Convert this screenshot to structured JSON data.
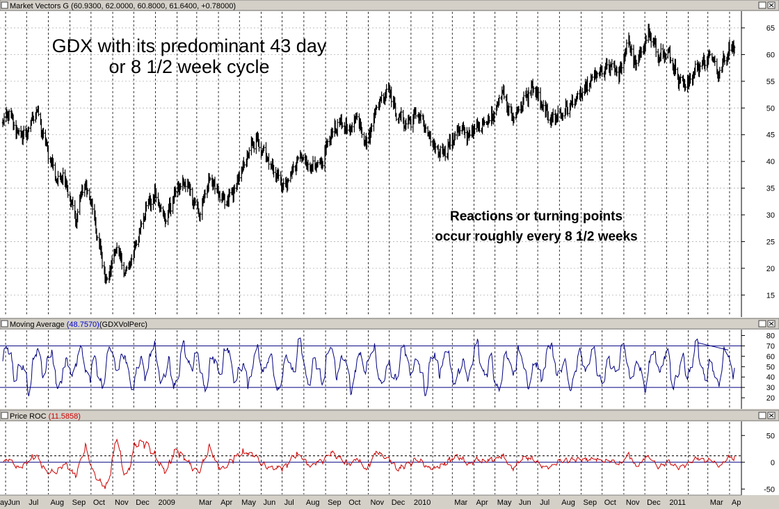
{
  "panels": [
    {
      "title": "Market Vectors G",
      "value_text": "(60.9300, 62.0000, 60.8000, 61.6400, +0.78000)",
      "value_color": "#000000"
    },
    {
      "title": "Moving Average",
      "value_text": "(48.7570)",
      "value_color": "#0000cc",
      "suffix": "(GDXVolPerc)"
    },
    {
      "title": "Price ROC",
      "value_text": "(11.5858)",
      "value_color": "#cc0000"
    }
  ],
  "annotations": {
    "title_line1": "GDX with its predominant 43 day",
    "title_line2": "or 8 1/2 week cycle",
    "note_line1": "Reactions or turning points",
    "note_line2": "occur roughly every 8 1/2 weeks"
  },
  "x_axis_labels": [
    "ay",
    "Jun",
    "Jul",
    "Aug",
    "Sep",
    "Oct",
    "Nov",
    "Dec",
    "2009",
    "Mar",
    "Apr",
    "May",
    "Jun",
    "Jul",
    "Aug",
    "Sep",
    "Oct",
    "Nov",
    "Dec",
    "2010",
    "Mar",
    "Apr",
    "May",
    "Jun",
    "Jul",
    "Aug",
    "Sep",
    "Oct",
    "Nov",
    "Dec",
    "2011",
    "Mar",
    "Apr"
  ],
  "colors": {
    "price": "#000000",
    "ma": "#000080",
    "roc": "#cc0000",
    "hline": "#000080",
    "grid": "#000000",
    "bg": "#ffffff"
  },
  "chart_data": [
    {
      "type": "ohlc",
      "title": "Market Vectors G",
      "ylim": [
        11,
        68
      ],
      "yticks": [
        15,
        20,
        25,
        30,
        35,
        40,
        45,
        50,
        55,
        60,
        65
      ],
      "x_start": "2008-05-28",
      "anchors": [
        [
          "2008-05-28",
          47
        ],
        [
          "2008-06-05",
          49
        ],
        [
          "2008-06-20",
          45
        ],
        [
          "2008-07-01",
          45
        ],
        [
          "2008-07-15",
          50
        ],
        [
          "2008-07-22",
          46
        ],
        [
          "2008-08-05",
          40
        ],
        [
          "2008-08-15",
          36
        ],
        [
          "2008-08-22",
          38
        ],
        [
          "2008-09-05",
          31
        ],
        [
          "2008-09-10",
          29
        ],
        [
          "2008-09-20",
          36
        ],
        [
          "2008-09-30",
          33
        ],
        [
          "2008-10-10",
          26
        ],
        [
          "2008-10-24",
          17
        ],
        [
          "2008-11-01",
          22
        ],
        [
          "2008-11-07",
          24
        ],
        [
          "2008-11-13",
          21
        ],
        [
          "2008-11-22",
          19
        ],
        [
          "2008-12-05",
          25
        ],
        [
          "2008-12-18",
          31
        ],
        [
          "2009-01-02",
          34
        ],
        [
          "2009-01-15",
          29
        ],
        [
          "2009-02-01",
          35
        ],
        [
          "2009-02-15",
          36
        ],
        [
          "2009-03-05",
          30
        ],
        [
          "2009-03-20",
          37
        ],
        [
          "2009-04-10",
          32
        ],
        [
          "2009-04-25",
          35
        ],
        [
          "2009-05-15",
          42
        ],
        [
          "2009-05-25",
          44
        ],
        [
          "2009-06-05",
          42
        ],
        [
          "2009-06-20",
          38
        ],
        [
          "2009-07-05",
          35
        ],
        [
          "2009-07-15",
          38
        ],
        [
          "2009-07-28",
          41
        ],
        [
          "2009-08-10",
          39
        ],
        [
          "2009-08-25",
          39
        ],
        [
          "2009-09-08",
          45
        ],
        [
          "2009-09-20",
          47
        ],
        [
          "2009-10-08",
          46
        ],
        [
          "2009-10-15",
          49
        ],
        [
          "2009-10-30",
          43
        ],
        [
          "2009-11-12",
          50
        ],
        [
          "2009-12-01",
          54
        ],
        [
          "2009-12-10",
          49
        ],
        [
          "2009-12-25",
          47
        ],
        [
          "2010-01-12",
          49
        ],
        [
          "2010-01-25",
          45
        ],
        [
          "2010-02-05",
          42
        ],
        [
          "2010-02-20",
          42
        ],
        [
          "2010-03-10",
          46
        ],
        [
          "2010-03-25",
          45
        ],
        [
          "2010-04-10",
          47
        ],
        [
          "2010-04-25",
          48
        ],
        [
          "2010-05-12",
          53
        ],
        [
          "2010-05-25",
          48
        ],
        [
          "2010-06-15",
          52
        ],
        [
          "2010-06-25",
          54
        ],
        [
          "2010-07-08",
          50
        ],
        [
          "2010-07-20",
          48
        ],
        [
          "2010-08-05",
          49
        ],
        [
          "2010-08-20",
          51
        ],
        [
          "2010-09-05",
          53
        ],
        [
          "2010-09-20",
          56
        ],
        [
          "2010-10-05",
          57
        ],
        [
          "2010-10-15",
          58
        ],
        [
          "2010-10-25",
          56
        ],
        [
          "2010-11-08",
          63
        ],
        [
          "2010-11-16",
          58
        ],
        [
          "2010-11-25",
          60
        ],
        [
          "2010-12-06",
          64
        ],
        [
          "2010-12-20",
          60
        ],
        [
          "2011-01-05",
          60
        ],
        [
          "2011-01-18",
          55
        ],
        [
          "2011-01-28",
          54
        ],
        [
          "2011-02-10",
          57
        ],
        [
          "2011-02-25",
          59
        ],
        [
          "2011-03-08",
          60
        ],
        [
          "2011-03-15",
          56
        ],
        [
          "2011-03-25",
          59
        ],
        [
          "2011-04-05",
          62
        ],
        [
          "2011-04-08",
          61.64
        ]
      ]
    },
    {
      "type": "line",
      "title": "Moving Average",
      "series_label": "GDXVolPerc",
      "ylim": [
        10,
        85
      ],
      "yticks": [
        20,
        30,
        40,
        50,
        60,
        70,
        80
      ],
      "hlines": [
        30,
        70
      ],
      "x_start": "2008-05-28",
      "last": 48.757
    },
    {
      "type": "line",
      "title": "Price ROC",
      "ylim": [
        -60,
        75
      ],
      "yticks": [
        -50,
        0,
        50
      ],
      "hlines_solid": [
        0
      ],
      "hlines_dashed": [
        12
      ],
      "x_start": "2008-05-28",
      "last": 11.5858
    }
  ]
}
